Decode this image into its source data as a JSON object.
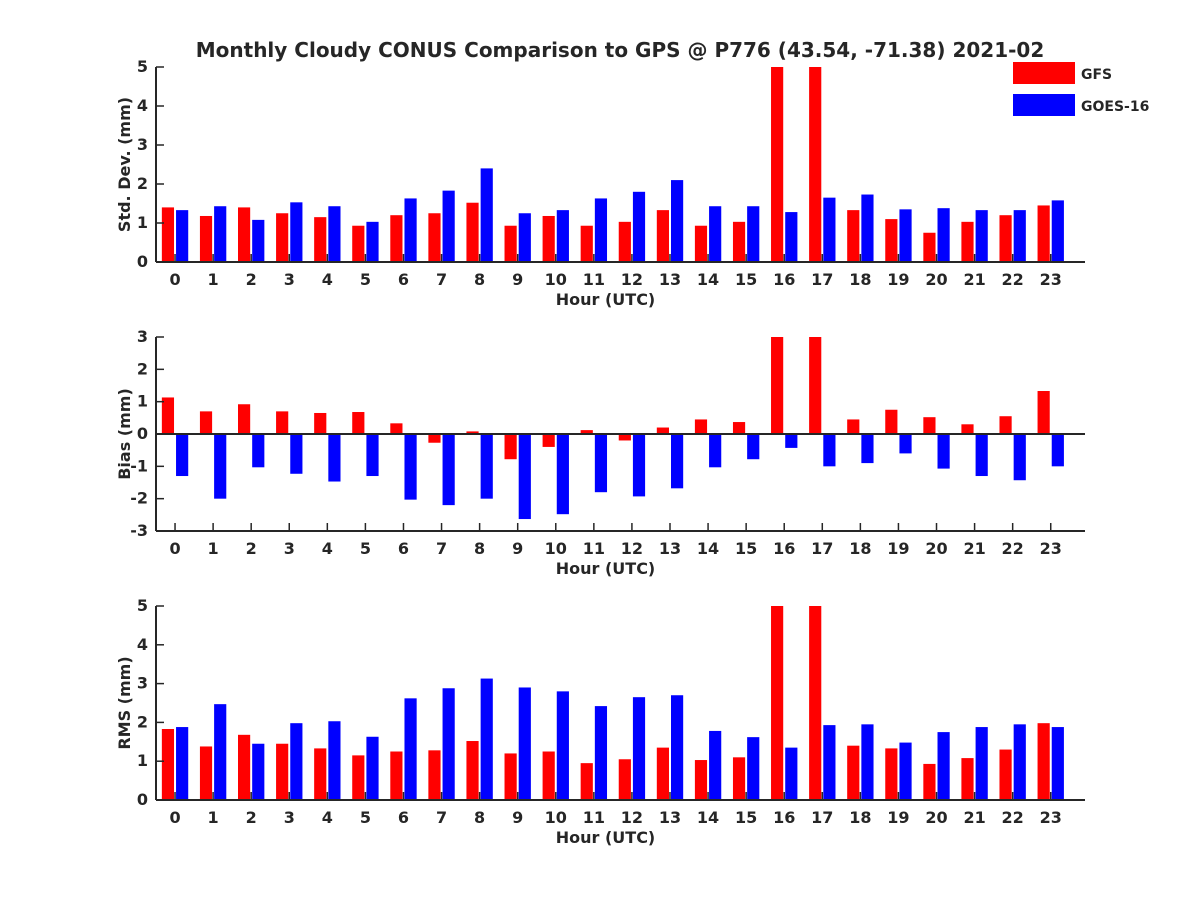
{
  "title": "Monthly Cloudy CONUS Comparison to GPS @ P776 (43.54, -71.38) 2021-02",
  "legend": [
    {
      "name": "GFS",
      "color": "#ff0000"
    },
    {
      "name": "GOES-16",
      "color": "#0000ff"
    }
  ],
  "chart_data": [
    {
      "type": "bar",
      "xlabel": "Hour (UTC)",
      "ylabel": "Std. Dev. (mm)",
      "ylim": [
        0,
        5
      ],
      "yticks": [
        "0",
        "1",
        "2",
        "3",
        "4",
        "5"
      ],
      "categories": [
        "0",
        "1",
        "2",
        "3",
        "4",
        "5",
        "6",
        "7",
        "8",
        "9",
        "10",
        "11",
        "12",
        "13",
        "14",
        "15",
        "16",
        "17",
        "18",
        "19",
        "20",
        "21",
        "22",
        "23"
      ],
      "series": [
        {
          "name": "GFS",
          "values": [
            1.4,
            1.18,
            1.4,
            1.25,
            1.15,
            0.93,
            1.2,
            1.25,
            1.52,
            0.93,
            1.18,
            0.93,
            1.03,
            1.33,
            0.93,
            1.03,
            5,
            5,
            1.33,
            1.1,
            0.75,
            1.03,
            1.2,
            1.45
          ]
        },
        {
          "name": "GOES-16",
          "values": [
            1.33,
            1.43,
            1.08,
            1.53,
            1.43,
            1.03,
            1.63,
            1.83,
            2.4,
            1.25,
            1.33,
            1.63,
            1.8,
            2.1,
            1.43,
            1.43,
            1.28,
            1.65,
            1.73,
            1.35,
            1.38,
            1.33,
            1.33,
            1.58
          ]
        }
      ]
    },
    {
      "type": "bar",
      "xlabel": "Hour (UTC)",
      "ylabel": "Bias (mm)",
      "ylim": [
        -3,
        3
      ],
      "yticks": [
        "-3",
        "-2",
        "-1",
        "0",
        "1",
        "2",
        "3"
      ],
      "categories": [
        "0",
        "1",
        "2",
        "3",
        "4",
        "5",
        "6",
        "7",
        "8",
        "9",
        "10",
        "11",
        "12",
        "13",
        "14",
        "15",
        "16",
        "17",
        "18",
        "19",
        "20",
        "21",
        "22",
        "23"
      ],
      "series": [
        {
          "name": "GFS",
          "values": [
            1.13,
            0.7,
            0.92,
            0.7,
            0.65,
            0.68,
            0.33,
            -0.27,
            0.08,
            -0.78,
            -0.4,
            0.12,
            -0.2,
            0.2,
            0.45,
            0.37,
            3,
            3,
            0.45,
            0.75,
            0.52,
            0.3,
            0.55,
            1.33
          ]
        },
        {
          "name": "GOES-16",
          "values": [
            -1.3,
            -2.0,
            -1.03,
            -1.23,
            -1.47,
            -1.3,
            -2.03,
            -2.2,
            -2.0,
            -2.63,
            -2.48,
            -1.8,
            -1.93,
            -1.68,
            -1.03,
            -0.78,
            -0.43,
            -1.0,
            -0.9,
            -0.6,
            -1.07,
            -1.3,
            -1.43,
            -1.0
          ]
        }
      ]
    },
    {
      "type": "bar",
      "xlabel": "Hour (UTC)",
      "ylabel": "RMS (mm)",
      "ylim": [
        0,
        5
      ],
      "yticks": [
        "0",
        "1",
        "2",
        "3",
        "4",
        "5"
      ],
      "categories": [
        "0",
        "1",
        "2",
        "3",
        "4",
        "5",
        "6",
        "7",
        "8",
        "9",
        "10",
        "11",
        "12",
        "13",
        "14",
        "15",
        "16",
        "17",
        "18",
        "19",
        "20",
        "21",
        "22",
        "23"
      ],
      "series": [
        {
          "name": "GFS",
          "values": [
            1.83,
            1.38,
            1.68,
            1.45,
            1.33,
            1.15,
            1.25,
            1.28,
            1.52,
            1.2,
            1.25,
            0.95,
            1.05,
            1.35,
            1.03,
            1.1,
            5,
            5,
            1.4,
            1.33,
            0.93,
            1.08,
            1.3,
            1.98
          ]
        },
        {
          "name": "GOES-16",
          "values": [
            1.88,
            2.47,
            1.45,
            1.98,
            2.03,
            1.63,
            2.62,
            2.88,
            3.13,
            2.9,
            2.8,
            2.42,
            2.65,
            2.7,
            1.78,
            1.62,
            1.35,
            1.93,
            1.95,
            1.48,
            1.75,
            1.88,
            1.95,
            1.88
          ]
        }
      ]
    }
  ]
}
